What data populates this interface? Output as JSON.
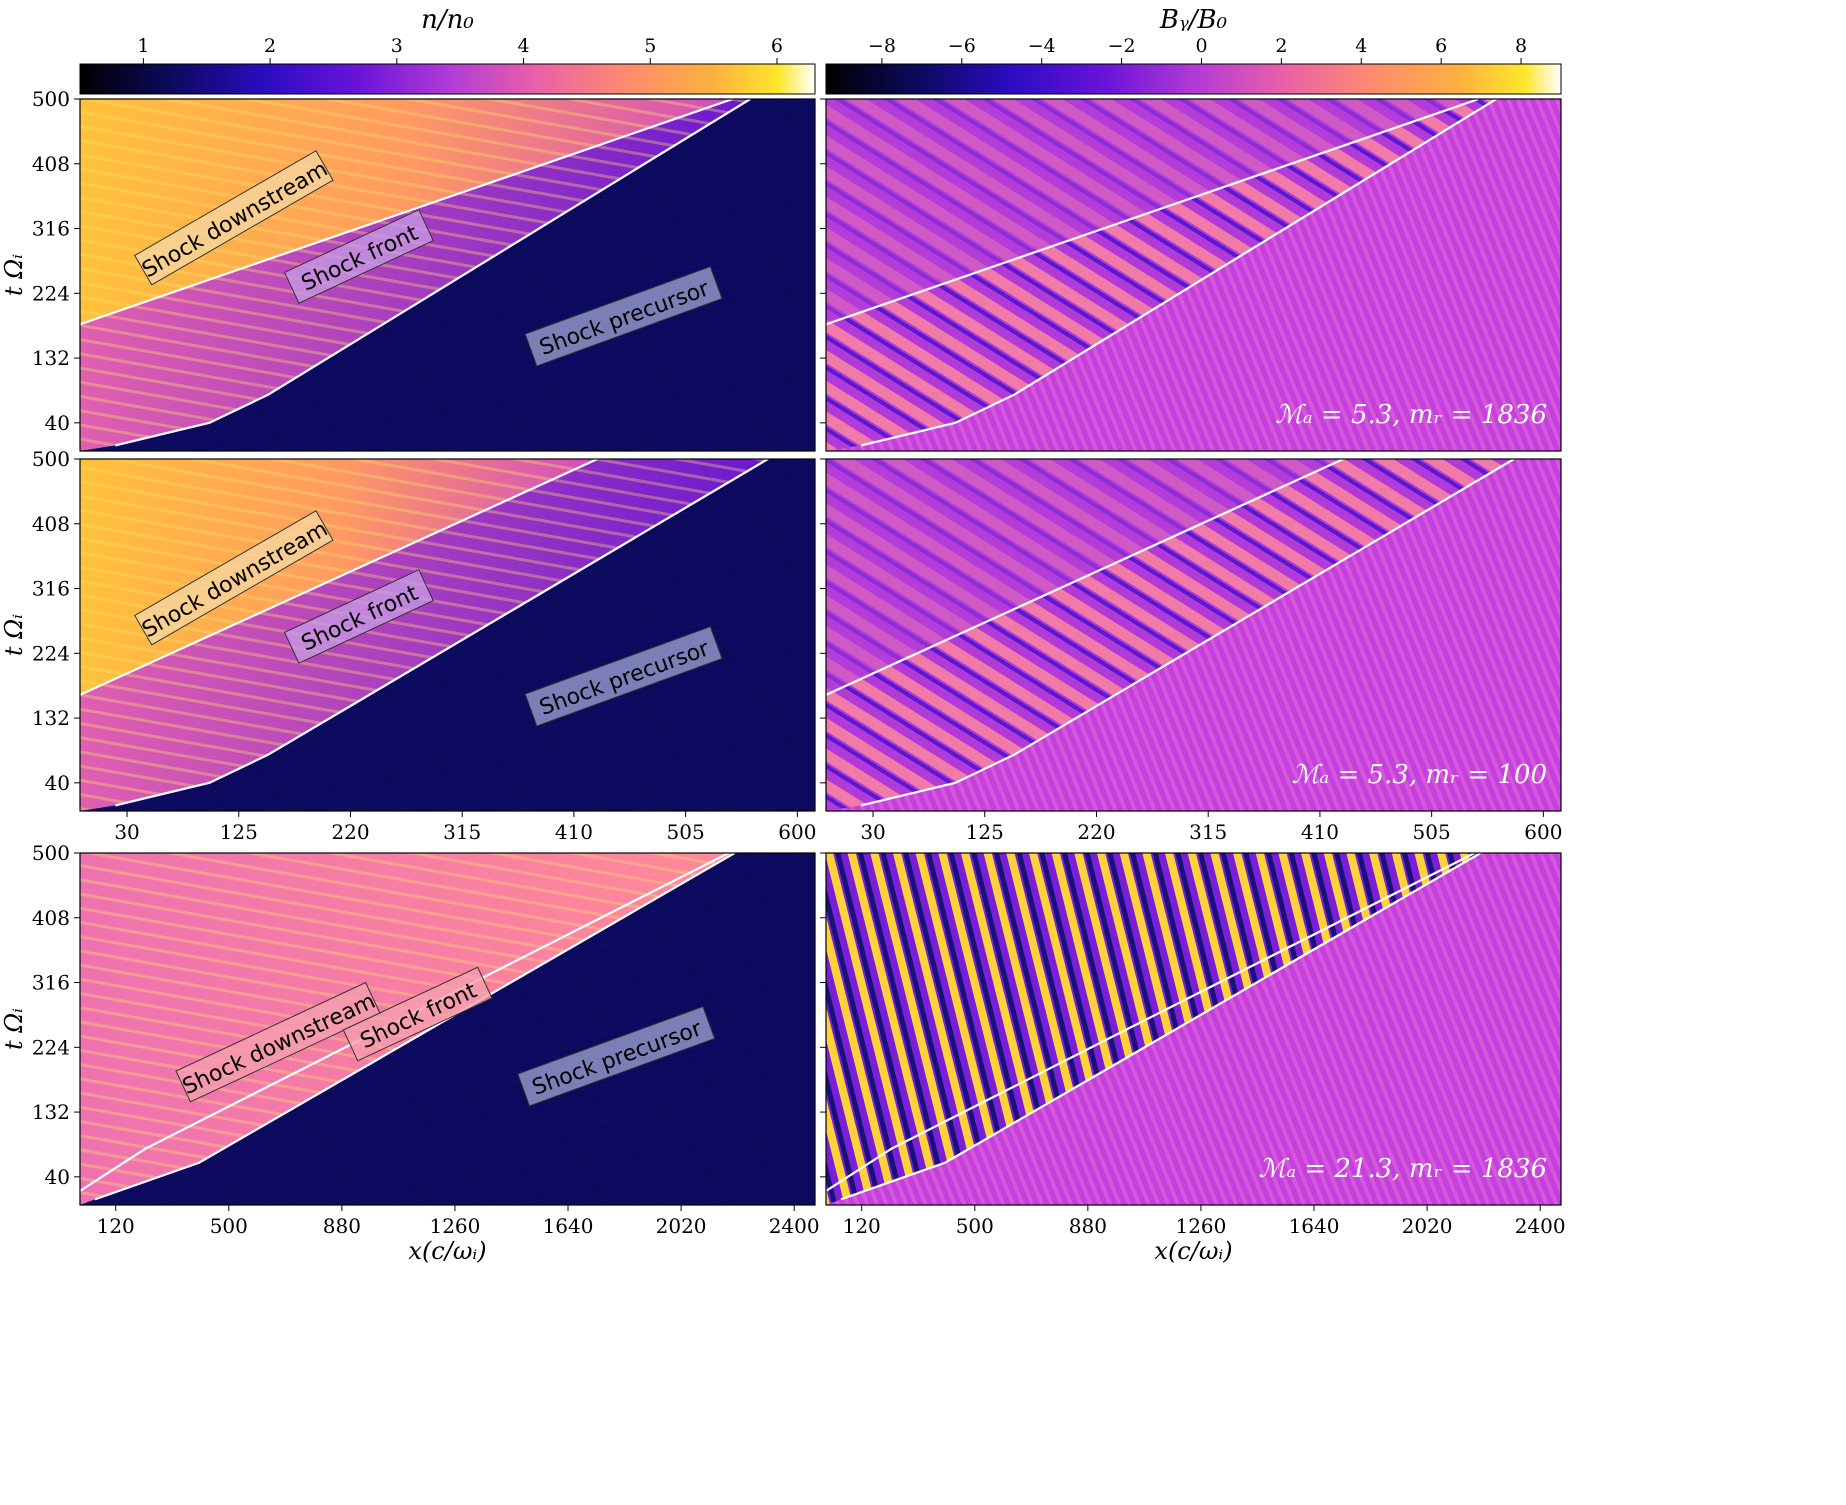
{
  "colorbars": [
    {
      "label": "n/n₀",
      "ticks": [
        "1",
        "2",
        "3",
        "4",
        "5",
        "6"
      ],
      "tick_values": [
        1,
        2,
        3,
        4,
        5,
        6
      ],
      "range": [
        0.5,
        6.3
      ]
    },
    {
      "label": "Bᵧ/B₀",
      "ticks": [
        "−8",
        "−6",
        "−4",
        "−2",
        "0",
        "2",
        "4",
        "6",
        "8"
      ],
      "tick_values": [
        -8,
        -6,
        -4,
        -2,
        0,
        2,
        4,
        6,
        8
      ],
      "range": [
        -9.4,
        9.0
      ]
    }
  ],
  "colors": {
    "precursor": "#0c0a5c",
    "colormap": [
      "#000000",
      "#0b0a5a",
      "#2a0cc0",
      "#6a14d8",
      "#b03ad6",
      "#e860a8",
      "#ff8a70",
      "#ffb040",
      "#ffe62a",
      "#ffffff"
    ]
  },
  "chart_data": [
    {
      "type": "heatmap",
      "panel": "n_top",
      "quantity": "n/n0",
      "x": [
        30,
        125,
        220,
        315,
        410,
        505,
        600
      ],
      "xlim": [
        -10,
        615
      ],
      "y": [
        40,
        132,
        224,
        316,
        408,
        500
      ],
      "ylim": [
        0,
        500
      ],
      "ylabel": "t Ωᵢ",
      "labels": [
        "Shock downstream",
        "Shock front",
        "Shock precursor"
      ],
      "shock_front_x_at_t": [
        [
          20,
          8
        ],
        [
          100,
          40
        ],
        [
          150,
          80
        ],
        [
          560,
          500
        ]
      ],
      "downstream_boundary_x_at_t": [
        [
          -10,
          180
        ],
        [
          545,
          500
        ]
      ]
    },
    {
      "type": "heatmap",
      "panel": "b_top",
      "quantity": "By/B0",
      "x": [
        30,
        125,
        220,
        315,
        410,
        505,
        600
      ],
      "xlim": [
        -10,
        615
      ],
      "y": [
        40,
        132,
        224,
        316,
        408,
        500
      ],
      "ylim": [
        0,
        500
      ],
      "annotation": "ℳₐ =  5.3, mᵣ = 1836"
    },
    {
      "type": "heatmap",
      "panel": "n_mid",
      "quantity": "n/n0",
      "x": [
        30,
        125,
        220,
        315,
        410,
        505,
        600
      ],
      "xlim": [
        -10,
        615
      ],
      "y": [
        40,
        132,
        224,
        316,
        408,
        500
      ],
      "ylim": [
        0,
        500
      ],
      "ylabel": "t Ωᵢ",
      "labels": [
        "Shock downstream",
        "Shock front",
        "Shock precursor"
      ],
      "shock_front_x_at_t": [
        [
          20,
          8
        ],
        [
          100,
          40
        ],
        [
          150,
          80
        ],
        [
          575,
          500
        ]
      ],
      "downstream_boundary_x_at_t": [
        [
          -10,
          165
        ],
        [
          430,
          500
        ]
      ]
    },
    {
      "type": "heatmap",
      "panel": "b_mid",
      "quantity": "By/B0",
      "x": [
        30,
        125,
        220,
        315,
        410,
        505,
        600
      ],
      "xlim": [
        -10,
        615
      ],
      "y": [
        40,
        132,
        224,
        316,
        408,
        500
      ],
      "ylim": [
        0,
        500
      ],
      "annotation": "ℳₐ =  5.3, mᵣ = 100"
    },
    {
      "type": "heatmap",
      "panel": "n_bot",
      "quantity": "n/n0",
      "x": [
        120,
        500,
        880,
        1260,
        1640,
        2020,
        2400
      ],
      "xlim": [
        0,
        2470
      ],
      "xlabel": "x(c/ωᵢ)",
      "y": [
        40,
        132,
        224,
        316,
        408,
        500
      ],
      "ylim": [
        0,
        500
      ],
      "ylabel": "t Ωᵢ",
      "labels": [
        "Shock downstream",
        "Shock front",
        "Shock precursor"
      ],
      "shock_front_x_at_t": [
        [
          50,
          8
        ],
        [
          400,
          60
        ],
        [
          2200,
          500
        ]
      ],
      "downstream_boundary_x_at_t": [
        [
          0,
          20
        ],
        [
          220,
          80
        ],
        [
          2180,
          500
        ]
      ]
    },
    {
      "type": "heatmap",
      "panel": "b_bot",
      "quantity": "By/B0",
      "x": [
        120,
        500,
        880,
        1260,
        1640,
        2020,
        2400
      ],
      "xlim": [
        0,
        2470
      ],
      "xlabel": "x(c/ωᵢ)",
      "y": [
        40,
        132,
        224,
        316,
        408,
        500
      ],
      "ylim": [
        0,
        500
      ],
      "annotation": "ℳₐ = 21.3, mᵣ = 1836"
    }
  ]
}
